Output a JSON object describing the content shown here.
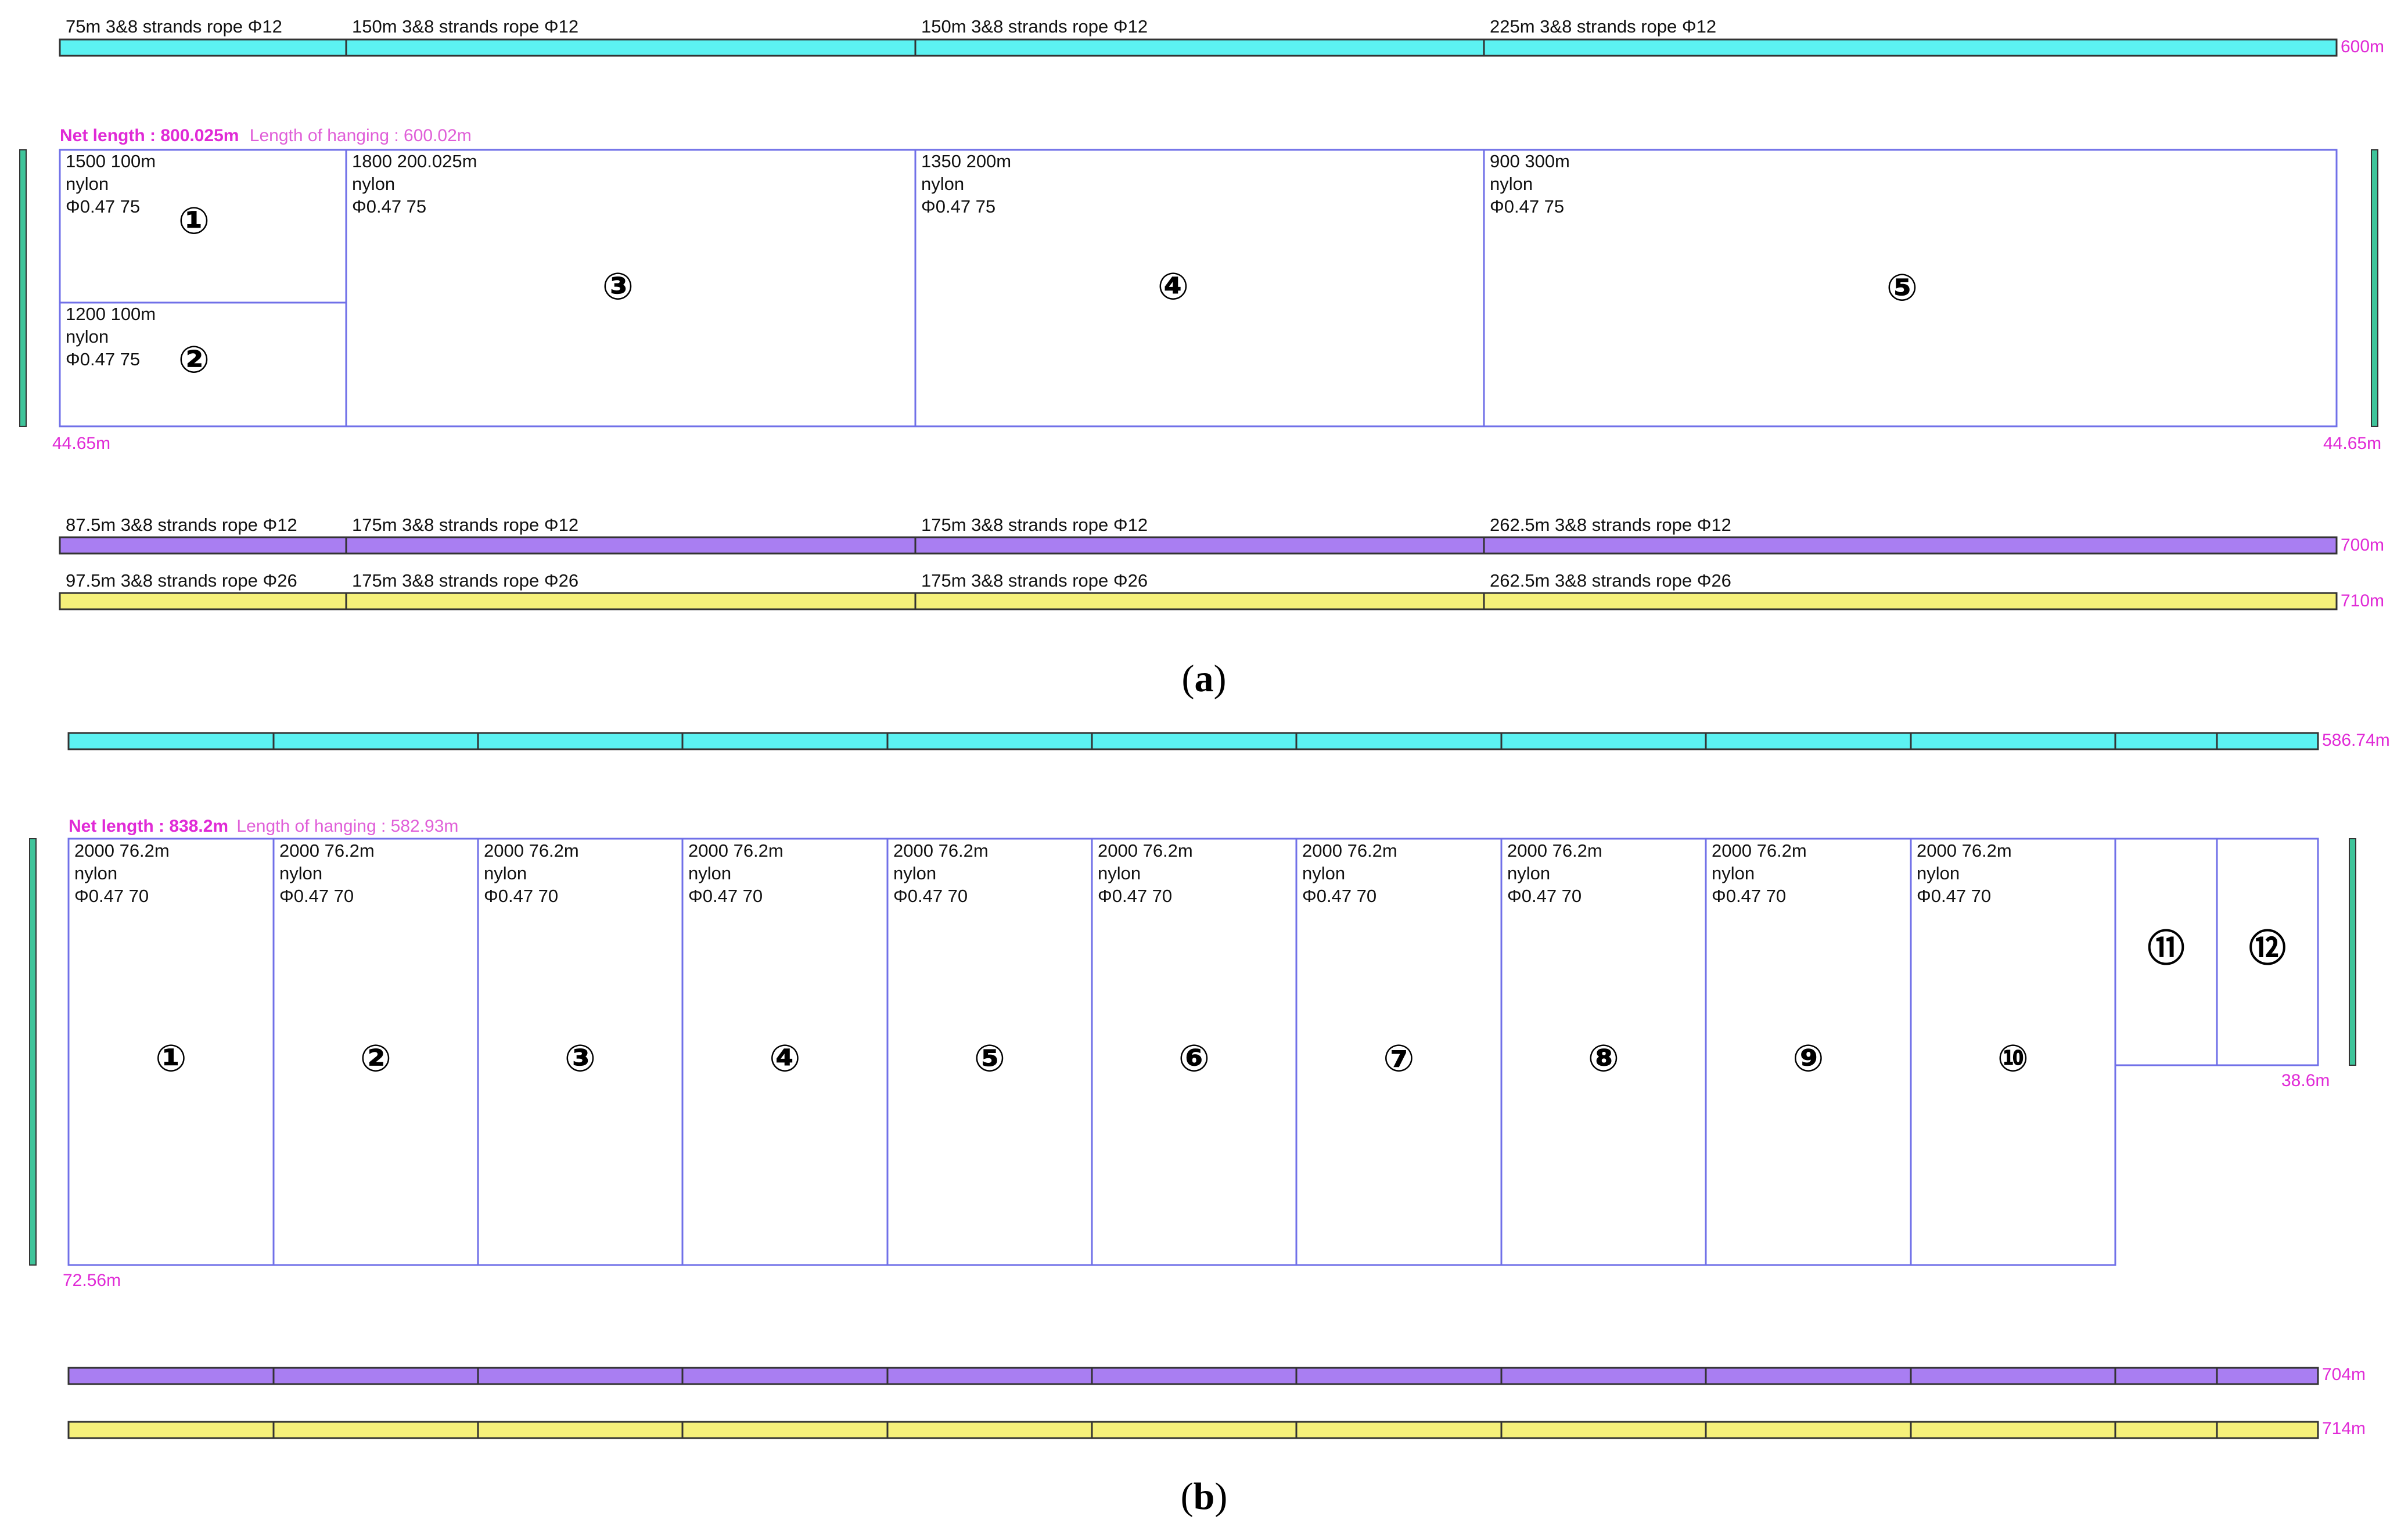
{
  "colors": {
    "float_rope": "#5cf2f2",
    "lead_rope": "#a97ef2",
    "ground_rope": "#f5f07a",
    "panel_border": "#7070e8",
    "annotation": "#e02ad6",
    "side_pole": "#3fc49a",
    "bar_border": "#333333"
  },
  "diagram_a": {
    "caption_letter": "a",
    "top_rope": {
      "end_label": "600m",
      "segments": [
        {
          "label": "75m  3&8 strands rope  Φ12"
        },
        {
          "label": "150m  3&8 strands rope  Φ12"
        },
        {
          "label": "150m  3&8 strands rope  Φ12"
        },
        {
          "label": "225m  3&8 strands rope  Φ12"
        }
      ]
    },
    "net_info": {
      "net_length_label": "Net length : 800.025m",
      "hanging_label": "Length of hanging : 600.02m"
    },
    "left_depth": "44.65m",
    "right_depth": "44.65m",
    "panels": [
      {
        "number": "①",
        "line1": "1500   100m",
        "line2": "nylon",
        "line3": "Φ0.47   75"
      },
      {
        "number": "②",
        "line1": "1200   100m",
        "line2": "nylon",
        "line3": "Φ0.47   75"
      },
      {
        "number": "③",
        "line1": "1800   200.025m",
        "line2": "nylon",
        "line3": "Φ0.47   75"
      },
      {
        "number": "④",
        "line1": "1350   200m",
        "line2": "nylon",
        "line3": "Φ0.47   75"
      },
      {
        "number": "⑤",
        "line1": "900   300m",
        "line2": "nylon",
        "line3": "Φ0.47   75"
      }
    ],
    "lead_rope": {
      "end_label": "700m",
      "segments": [
        {
          "label": "87.5m  3&8 strands rope  Φ12"
        },
        {
          "label": "175m  3&8 strands rope  Φ12"
        },
        {
          "label": "175m  3&8 strands rope  Φ12"
        },
        {
          "label": "262.5m  3&8 strands rope  Φ12"
        }
      ]
    },
    "ground_rope": {
      "end_label": "710m",
      "segments": [
        {
          "label": "97.5m  3&8 strands rope  Φ26"
        },
        {
          "label": "175m  3&8 strands rope  Φ26"
        },
        {
          "label": "175m  3&8 strands rope  Φ26"
        },
        {
          "label": "262.5m  3&8 strands rope  Φ26"
        }
      ]
    }
  },
  "diagram_b": {
    "caption_letter": "b",
    "top_rope": {
      "end_label": "586.74m"
    },
    "net_info": {
      "net_length_label": "Net length : 838.2m",
      "hanging_label": "Length of hanging : 582.93m"
    },
    "left_depth": "72.56m",
    "right_depth": "38.6m",
    "panel_spec": {
      "line1": "2000   76.2m",
      "line2": "nylon",
      "line3": "Φ0.47   70"
    },
    "panels": [
      {
        "number": "①"
      },
      {
        "number": "②"
      },
      {
        "number": "③"
      },
      {
        "number": "④"
      },
      {
        "number": "⑤"
      },
      {
        "number": "⑥"
      },
      {
        "number": "⑦"
      },
      {
        "number": "⑧"
      },
      {
        "number": "⑨"
      },
      {
        "number": "⑩"
      },
      {
        "number": "⑪"
      },
      {
        "number": "⑫"
      }
    ],
    "lead_rope": {
      "end_label": "704m"
    },
    "ground_rope": {
      "end_label": "714m"
    }
  }
}
